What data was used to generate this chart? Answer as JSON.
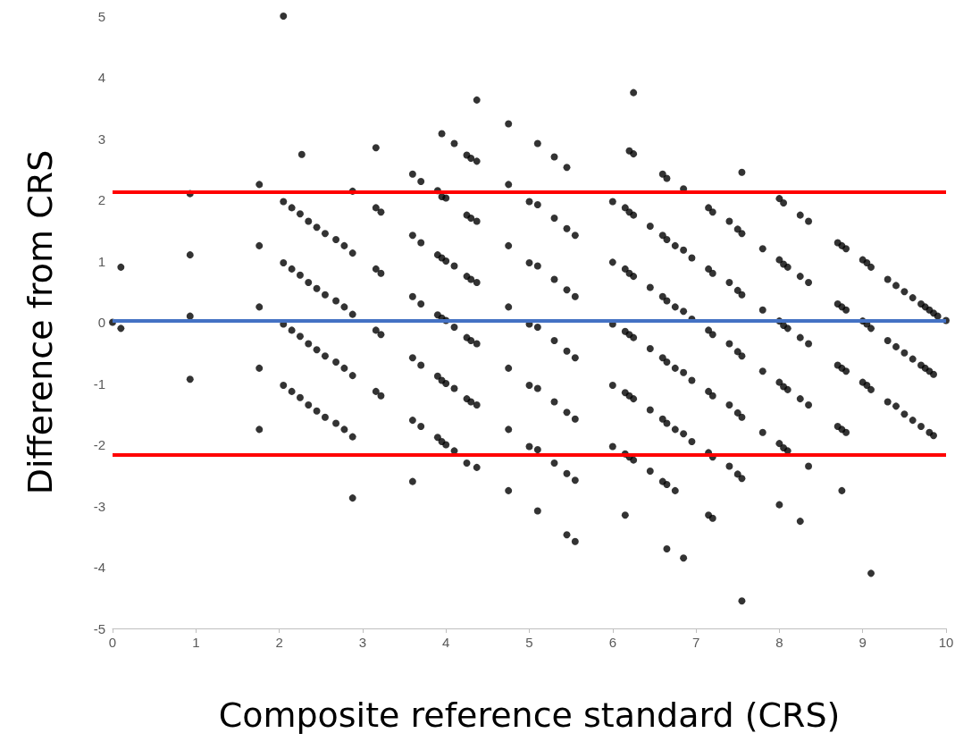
{
  "chart_data": {
    "type": "scatter",
    "xlabel": "Composite reference standard (CRS)",
    "ylabel": "Difference from CRS",
    "xlim": [
      0,
      10
    ],
    "xticks": [
      0,
      1,
      2,
      3,
      4,
      5,
      6,
      7,
      8,
      9,
      10
    ],
    "ylim": [
      -5,
      5
    ],
    "yticks": [
      -5,
      -4,
      -3,
      -2,
      -1,
      0,
      1,
      2,
      3,
      4,
      5
    ],
    "grid": false,
    "marker": "circle",
    "ref_lines": [
      {
        "axis": "y",
        "value": 2.13,
        "color": "#ff0000"
      },
      {
        "axis": "y",
        "value": 0.03,
        "color": "#4472c4"
      },
      {
        "axis": "y",
        "value": -2.16,
        "color": "#ff0000"
      }
    ],
    "series": [
      {
        "color": "#000000",
        "x": [
          0,
          0.1,
          0.1,
          0.93,
          0.93,
          0.93,
          0.93,
          1.76,
          1.76,
          1.76,
          1.76,
          1.76,
          2.05,
          2.27,
          2.05,
          2.15,
          2.25,
          2.35,
          2.45,
          2.55,
          2.68,
          2.78,
          2.88,
          2.05,
          2.15,
          2.25,
          2.35,
          2.45,
          2.55,
          2.68,
          2.78,
          2.88,
          2.05,
          2.15,
          2.25,
          2.35,
          2.45,
          2.55,
          2.68,
          2.78,
          2.88,
          2.05,
          2.15,
          2.25,
          2.35,
          2.45,
          2.55,
          2.68,
          2.78,
          2.88,
          2.88,
          2.88,
          3.16,
          3.16,
          3.16,
          3.16,
          3.16,
          3.22,
          3.22,
          3.22,
          3.22,
          3.6,
          3.6,
          3.6,
          3.6,
          3.6,
          3.6,
          3.7,
          3.7,
          3.7,
          3.7,
          3.7,
          3.9,
          3.9,
          3.9,
          3.9,
          3.9,
          3.95,
          3.95,
          3.95,
          3.95,
          3.95,
          3.95,
          4.0,
          4.0,
          4.0,
          4.0,
          4.0,
          4.1,
          4.1,
          4.1,
          4.1,
          4.1,
          4.25,
          4.25,
          4.25,
          4.25,
          4.25,
          4.25,
          4.3,
          4.3,
          4.3,
          4.3,
          4.3,
          4.37,
          4.37,
          4.37,
          4.37,
          4.37,
          4.37,
          4.37,
          4.75,
          4.75,
          4.75,
          4.75,
          4.75,
          4.75,
          4.75,
          5.0,
          5.0,
          5.0,
          5.0,
          5.0,
          5.1,
          5.1,
          5.1,
          5.1,
          5.1,
          5.1,
          5.1,
          5.3,
          5.3,
          5.3,
          5.3,
          5.3,
          5.3,
          5.45,
          5.45,
          5.45,
          5.45,
          5.45,
          5.45,
          5.45,
          5.55,
          5.55,
          5.55,
          5.55,
          5.55,
          5.55,
          6.0,
          6.0,
          6.0,
          6.0,
          6.0,
          6.15,
          6.15,
          6.15,
          6.15,
          6.15,
          6.15,
          6.2,
          6.2,
          6.2,
          6.2,
          6.2,
          6.2,
          6.25,
          6.25,
          6.25,
          6.25,
          6.25,
          6.25,
          6.25,
          6.45,
          6.45,
          6.45,
          6.45,
          6.45,
          6.6,
          6.6,
          6.6,
          6.6,
          6.6,
          6.6,
          6.65,
          6.65,
          6.65,
          6.65,
          6.65,
          6.65,
          6.65,
          6.75,
          6.75,
          6.75,
          6.75,
          6.75,
          6.85,
          6.85,
          6.85,
          6.85,
          6.85,
          6.85,
          6.95,
          6.95,
          6.95,
          6.95,
          7.15,
          7.15,
          7.15,
          7.15,
          7.15,
          7.15,
          7.2,
          7.2,
          7.2,
          7.2,
          7.2,
          7.2,
          7.4,
          7.4,
          7.4,
          7.4,
          7.4,
          7.5,
          7.5,
          7.5,
          7.5,
          7.5,
          7.55,
          7.55,
          7.55,
          7.55,
          7.55,
          7.55,
          7.55,
          7.8,
          7.8,
          7.8,
          7.8,
          8.0,
          8.0,
          8.0,
          8.0,
          8.0,
          8.0,
          8.05,
          8.05,
          8.05,
          8.05,
          8.05,
          8.1,
          8.1,
          8.1,
          8.1,
          8.25,
          8.25,
          8.25,
          8.25,
          8.25,
          8.35,
          8.35,
          8.35,
          8.35,
          8.35,
          8.7,
          8.7,
          8.7,
          8.7,
          8.75,
          8.75,
          8.75,
          8.75,
          8.75,
          8.8,
          8.8,
          8.8,
          8.8,
          9.0,
          9.0,
          9.0,
          9.05,
          9.05,
          9.05,
          9.1,
          9.1,
          9.1,
          9.1,
          9.3,
          9.3,
          9.3,
          9.4,
          9.4,
          9.4,
          9.5,
          9.5,
          9.5,
          9.6,
          9.6,
          9.6,
          9.7,
          9.7,
          9.7,
          9.75,
          9.75,
          9.8,
          9.8,
          9.8,
          9.85,
          9.85,
          9.85,
          9.9,
          10
        ],
        "values": [
          0,
          0.9,
          -0.1,
          2.1,
          1.1,
          0.1,
          -0.93,
          2.25,
          1.25,
          0.25,
          -0.75,
          -1.75,
          5,
          2.74,
          1.97,
          1.87,
          1.77,
          1.65,
          1.55,
          1.45,
          1.35,
          1.25,
          1.13,
          0.97,
          0.87,
          0.77,
          0.65,
          0.55,
          0.45,
          0.35,
          0.25,
          0.13,
          -0.03,
          -0.13,
          -0.23,
          -0.35,
          -0.45,
          -0.55,
          -0.65,
          -0.75,
          -0.87,
          -1.03,
          -1.13,
          -1.23,
          -1.35,
          -1.45,
          -1.55,
          -1.65,
          -1.75,
          -1.87,
          2.14,
          -2.87,
          2.85,
          1.87,
          0.87,
          -0.13,
          -1.13,
          1.8,
          0.8,
          -0.2,
          -1.2,
          2.42,
          1.42,
          0.42,
          -0.58,
          -1.6,
          -2.6,
          2.3,
          1.3,
          0.3,
          -0.7,
          -1.7,
          2.15,
          1.1,
          0.12,
          -0.88,
          -1.88,
          3.08,
          2.05,
          1.05,
          0.07,
          -0.95,
          -1.95,
          2.03,
          1.0,
          0.03,
          -1.0,
          -2.0,
          2.92,
          0.92,
          -0.08,
          -1.08,
          -2.1,
          2.73,
          1.75,
          0.75,
          -0.25,
          -1.25,
          -2.3,
          2.68,
          1.7,
          0.7,
          -0.3,
          -1.3,
          3.63,
          2.63,
          1.65,
          0.65,
          -0.35,
          -1.35,
          -2.37,
          3.24,
          2.25,
          1.25,
          0.25,
          -0.75,
          -1.75,
          -2.75,
          1.97,
          0.97,
          -0.03,
          -1.03,
          -2.03,
          2.92,
          1.92,
          0.92,
          -0.08,
          -1.08,
          -2.08,
          -3.08,
          2.7,
          1.7,
          0.7,
          -0.3,
          -1.3,
          -2.3,
          2.53,
          1.53,
          0.53,
          -0.47,
          -1.47,
          -2.47,
          -3.47,
          1.42,
          0.42,
          -0.58,
          -1.58,
          -2.58,
          -3.58,
          1.97,
          0.98,
          -0.03,
          -1.03,
          -2.03,
          1.87,
          0.87,
          -0.15,
          -1.15,
          -2.15,
          -3.15,
          2.8,
          1.8,
          0.8,
          -0.2,
          -1.2,
          -2.2,
          3.75,
          2.75,
          1.75,
          0.75,
          -0.25,
          -1.25,
          -2.25,
          1.57,
          0.57,
          -0.43,
          -1.43,
          -2.43,
          2.42,
          1.42,
          0.42,
          -0.58,
          -1.58,
          -2.6,
          2.35,
          1.35,
          0.35,
          -0.65,
          -1.65,
          -2.65,
          -3.7,
          1.25,
          0.25,
          -0.75,
          -1.75,
          -2.75,
          2.18,
          1.18,
          0.18,
          -0.82,
          -1.82,
          -3.85,
          1.05,
          0.05,
          -0.95,
          -1.95,
          1.87,
          0.87,
          -0.13,
          -1.13,
          -2.13,
          -3.15,
          1.8,
          0.8,
          -0.2,
          -1.2,
          -2.2,
          -3.2,
          1.65,
          0.65,
          -0.35,
          -1.35,
          -2.35,
          1.52,
          0.52,
          -0.48,
          -1.48,
          -2.48,
          2.45,
          1.45,
          0.45,
          -0.55,
          -1.55,
          -2.55,
          -4.55,
          1.2,
          0.2,
          -0.8,
          -1.8,
          2.02,
          1.02,
          0.02,
          -0.98,
          -1.98,
          -2.98,
          1.95,
          0.95,
          -0.05,
          -1.05,
          -2.05,
          0.9,
          -0.1,
          -1.1,
          -2.1,
          1.75,
          0.75,
          -0.25,
          -1.25,
          -3.25,
          1.65,
          0.65,
          -0.35,
          -1.35,
          -2.35,
          1.3,
          0.3,
          -0.7,
          -1.7,
          1.25,
          0.25,
          -0.75,
          -1.75,
          -2.75,
          1.2,
          0.2,
          -0.8,
          -1.8,
          1.02,
          0.02,
          -0.98,
          0.97,
          -0.03,
          -1.03,
          0.9,
          -0.1,
          -1.1,
          -4.1,
          0.7,
          -0.3,
          -1.3,
          0.6,
          -0.4,
          -1.37,
          0.5,
          -0.5,
          -1.5,
          0.4,
          -0.6,
          -1.6,
          0.3,
          -0.7,
          -1.7,
          0.25,
          -0.75,
          0.2,
          -0.8,
          -1.8,
          0.15,
          -0.85,
          -1.85,
          0.1,
          0.03
        ]
      }
    ]
  }
}
